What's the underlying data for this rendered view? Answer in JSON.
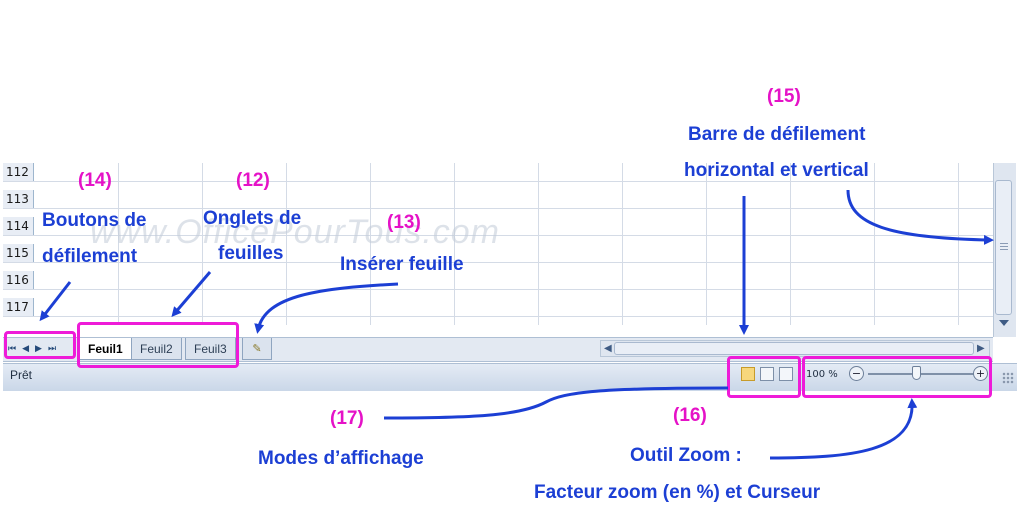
{
  "spreadsheet": {
    "row_numbers": [
      "112",
      "113",
      "114",
      "115",
      "116",
      "117"
    ],
    "nav_buttons": [
      "⏮",
      "◀",
      "▶",
      "⏭"
    ],
    "tabs": [
      "Feuil1",
      "Feuil2",
      "Feuil3"
    ],
    "active_tab": "Feuil1",
    "status_text": "Prêt",
    "zoom_level": "100 %",
    "zoom_minus": "−",
    "zoom_plus": "+",
    "view_modes": [
      "normal-view-icon",
      "page-layout-view-icon",
      "page-break-preview-icon"
    ]
  },
  "watermark": "www.OfficePourTous.com",
  "annotations": {
    "a12": {
      "number": "(12)",
      "label_line1": "Onglets de",
      "label_line2": "feuilles"
    },
    "a13": {
      "number": "(13)",
      "label": "Insérer feuille"
    },
    "a14": {
      "number": "(14)",
      "label_line1": "Boutons de",
      "label_line2": "défilement"
    },
    "a15": {
      "number": "(15)",
      "label_line1": "Barre de défilement",
      "label_line2": "horizontal et vertical"
    },
    "a16": {
      "number": "(16)",
      "label_line1": "Outil Zoom :",
      "label_line2": "Facteur zoom (en %) et Curseur"
    },
    "a17": {
      "number": "(17)",
      "label": "Modes d’affichage"
    }
  },
  "colors": {
    "annotation_box": "#ee1bd8",
    "annotation_text": "#1c3fd4",
    "number_text": "#e512c7"
  }
}
